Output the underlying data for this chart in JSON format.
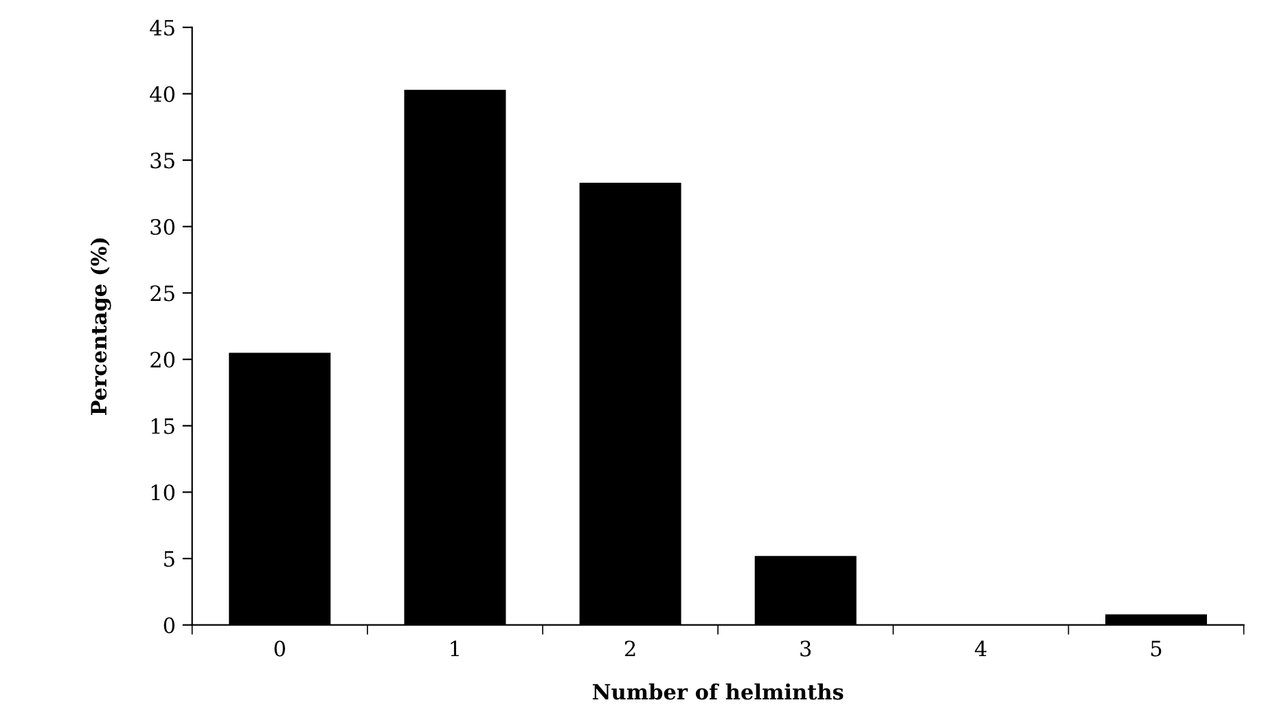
{
  "chart_data": {
    "type": "bar",
    "xlabel": "Number of helminths",
    "ylabel": "Percentage (%)",
    "categories": [
      "0",
      "1",
      "2",
      "3",
      "4",
      "5"
    ],
    "values": [
      20.5,
      40.3,
      33.3,
      5.2,
      0,
      0.8
    ],
    "color": "#000000",
    "ylim": [
      0,
      45
    ],
    "yticks": [
      0,
      5,
      10,
      15,
      20,
      25,
      30,
      35,
      40,
      45
    ],
    "grid": false,
    "legend": false
  }
}
